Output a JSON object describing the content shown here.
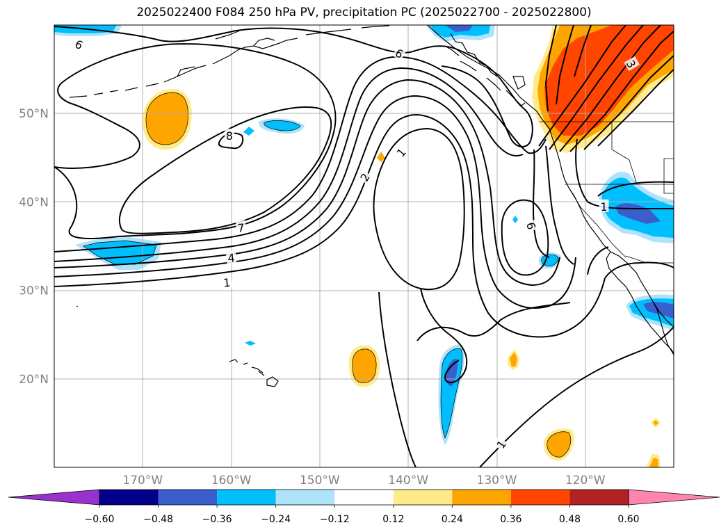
{
  "title": "2025022400 F084 250 hPa PV, precipitation PC (2025022700 - 2025022800)",
  "map": {
    "lon_range": [
      -180,
      -110
    ],
    "lat_range": [
      10,
      60
    ],
    "lon_ticks": [
      {
        "value": -170,
        "label": "170°W"
      },
      {
        "value": -160,
        "label": "160°W"
      },
      {
        "value": -150,
        "label": "150°W"
      },
      {
        "value": -140,
        "label": "140°W"
      },
      {
        "value": -130,
        "label": "130°W"
      },
      {
        "value": -120,
        "label": "120°W"
      }
    ],
    "lat_ticks": [
      {
        "value": 20,
        "label": "20°N"
      },
      {
        "value": 30,
        "label": "30°N"
      },
      {
        "value": 40,
        "label": "40°N"
      },
      {
        "value": 50,
        "label": "50°N"
      }
    ],
    "grid": true
  },
  "contour_labels": [
    {
      "text": "6",
      "lon": -177.2,
      "lat": 57.8,
      "rot": 25
    },
    {
      "text": "6",
      "lon": -141,
      "lat": 56.8,
      "rot": 30
    },
    {
      "text": "3",
      "lon": -114.8,
      "lat": 55.6,
      "rot": 60
    },
    {
      "text": "1",
      "lon": -140.8,
      "lat": 45.6,
      "rot": -50
    },
    {
      "text": "2",
      "lon": -144.9,
      "lat": 42.8,
      "rot": -60
    },
    {
      "text": "7",
      "lon": -158.9,
      "lat": 37.1,
      "rot": -5
    },
    {
      "text": "6",
      "lon": -126.1,
      "lat": 37.3,
      "rot": 75
    },
    {
      "text": "1",
      "lon": -117.9,
      "lat": 39.5,
      "rot": 0
    },
    {
      "text": "4",
      "lon": -160,
      "lat": 33.7,
      "rot": -5
    },
    {
      "text": "1",
      "lon": -160.5,
      "lat": 30.9,
      "rot": -5
    },
    {
      "text": "1",
      "lon": -129.5,
      "lat": 12.6,
      "rot": -55
    },
    {
      "text": "8",
      "lon": -160.2,
      "lat": 47.5,
      "rot": 0
    }
  ],
  "colorbar": {
    "colors": [
      "#9932cc",
      "#00008b",
      "#3a5fcd",
      "#00bfff",
      "#aee3fa",
      "#ffffff",
      "#ffeb8a",
      "#ffa500",
      "#ff4500",
      "#b22222",
      "#ff85ad"
    ],
    "ticks": [
      "−0.60",
      "−0.48",
      "−0.36",
      "−0.24",
      "−0.12",
      "0.12",
      "0.24",
      "0.36",
      "0.48",
      "0.60"
    ]
  },
  "palette": {
    "pos_light": "#ffeb8a",
    "pos_mid": "#ffa500",
    "pos_strong": "#ff4500",
    "neg_light": "#aee3fa",
    "neg_mid": "#00bfff",
    "neg_strong": "#3a5fcd"
  }
}
